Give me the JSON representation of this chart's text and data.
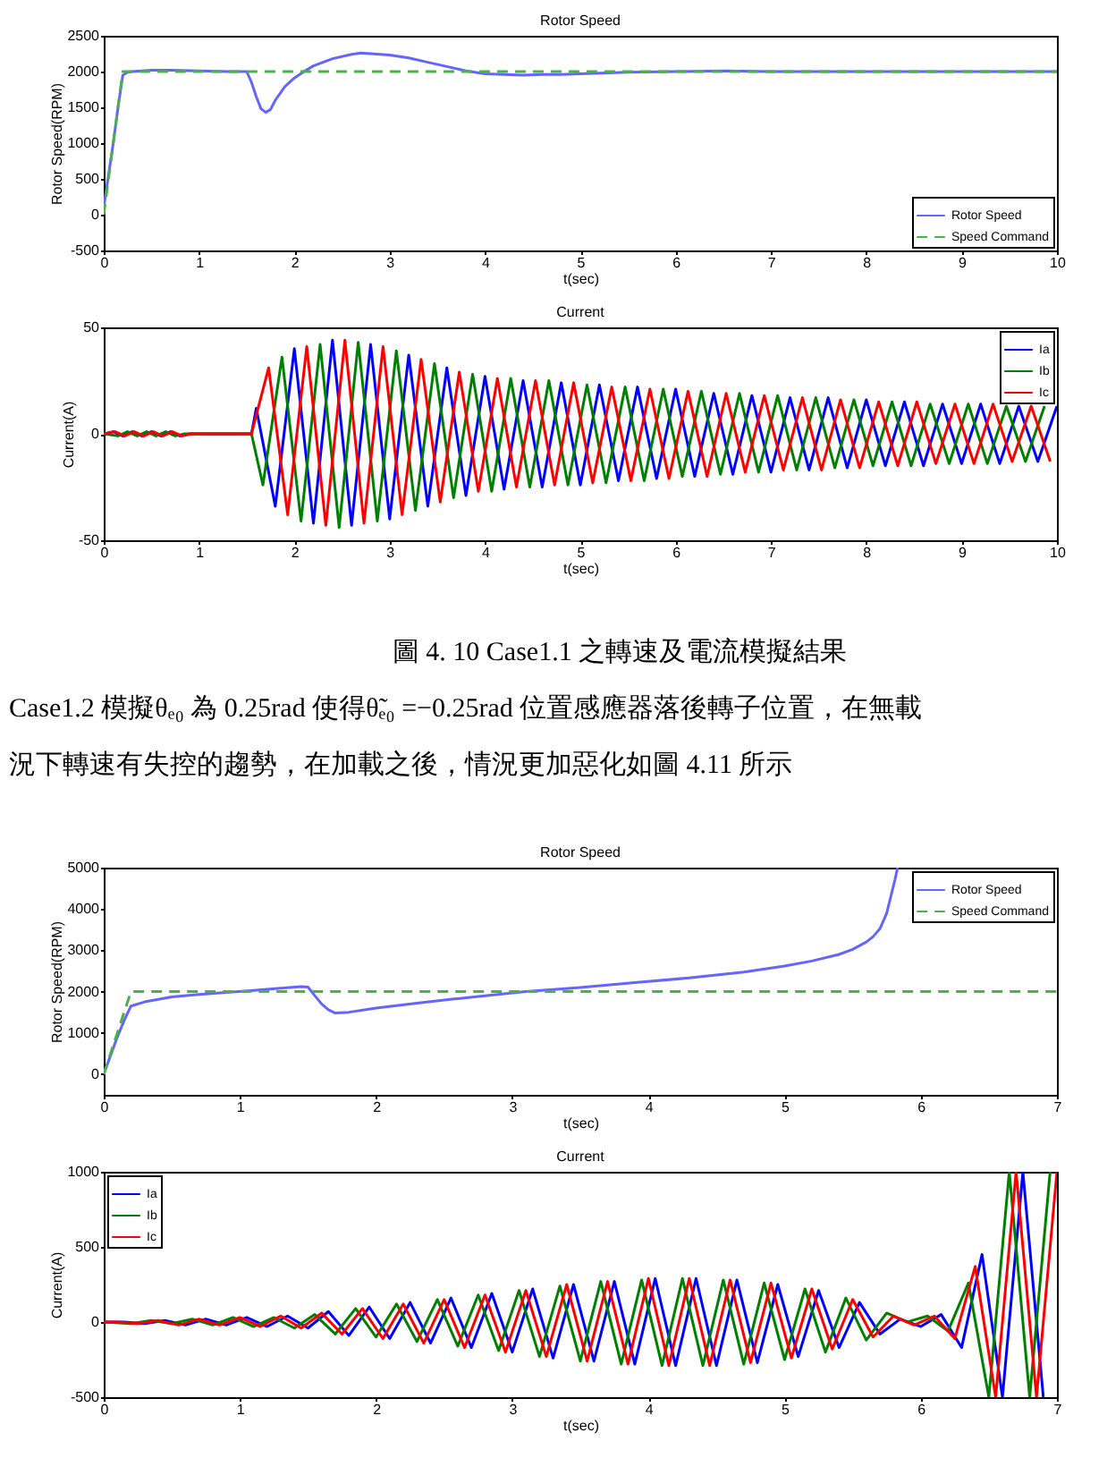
{
  "chart_data": [
    {
      "type": "line",
      "title": "Rotor Speed",
      "xlabel": "t(sec)",
      "ylabel": "Rotor Speed(RPM)",
      "xlim": [
        0,
        10
      ],
      "ylim": [
        -500,
        2500
      ],
      "xticks": [
        0,
        1,
        2,
        3,
        4,
        5,
        6,
        7,
        8,
        9,
        10
      ],
      "yticks": [
        -500,
        0,
        500,
        1000,
        1500,
        2000,
        2500
      ],
      "legend": "bottom right",
      "series": [
        {
          "name": "Rotor Speed",
          "color": "#6464ff",
          "line_style": "solid",
          "x": [
            0,
            0.05,
            0.1,
            0.15,
            0.2,
            0.25,
            0.3,
            0.4,
            0.5,
            0.7,
            1.0,
            1.3,
            1.5,
            1.55,
            1.6,
            1.65,
            1.7,
            1.75,
            1.8,
            1.9,
            2.0,
            2.1,
            2.2,
            2.4,
            2.6,
            2.7,
            2.8,
            3.0,
            3.2,
            3.4,
            3.6,
            3.8,
            4.0,
            4.2,
            4.4,
            4.6,
            4.8,
            5.0,
            5.5,
            6.0,
            6.5,
            7.0,
            8.0,
            9.0,
            10
          ],
          "values": [
            100,
            550,
            1000,
            1500,
            1950,
            1990,
            2000,
            2010,
            2020,
            2020,
            2010,
            2000,
            2000,
            1850,
            1650,
            1480,
            1430,
            1470,
            1600,
            1790,
            1910,
            2000,
            2080,
            2180,
            2240,
            2260,
            2250,
            2230,
            2190,
            2130,
            2070,
            2010,
            1970,
            1960,
            1950,
            1960,
            1960,
            1970,
            1990,
            2000,
            2010,
            2000,
            2000,
            2000,
            2000
          ]
        },
        {
          "name": "Speed Command",
          "color": "#4cb04c",
          "line_style": "dashed",
          "x": [
            0,
            0.2,
            10
          ],
          "values": [
            0,
            2000,
            2000
          ]
        }
      ]
    },
    {
      "type": "line",
      "title": "Current",
      "xlabel": "t(sec)",
      "ylabel": "Current(A)",
      "xlim": [
        0,
        10
      ],
      "ylim": [
        -50,
        50
      ],
      "xticks": [
        0,
        1,
        2,
        3,
        4,
        5,
        6,
        7,
        8,
        9,
        10
      ],
      "yticks": [
        -50,
        0,
        50
      ],
      "legend": "top right",
      "annotations": [
        "圖 4. 10 Case1.1 之轉速及電流模擬結果",
        "Case1.2 模擬θₑ₀ 為 0.25rad 使得θ̃ₑ₀ =−0.25rad 位置感應器落後轉子位置，在無載",
        "況下轉速有失控的趨勢，在加載之後，情況更加惡化如圖 4.11 所示"
      ],
      "series": [
        {
          "name": "Ia",
          "color": "#0000ff",
          "line_style": "solid",
          "x": [
            0,
            0.1,
            0.2,
            0.3,
            0.4,
            0.5,
            0.6,
            0.7,
            0.8,
            0.9,
            1.5,
            1.55,
            1.6,
            1.8,
            2.0,
            2.2,
            2.4,
            2.6,
            2.8,
            3.0,
            3.2,
            3.4,
            3.6,
            3.8,
            4.0,
            4.2,
            4.4,
            4.6,
            4.8,
            5.0,
            5.2,
            5.4,
            5.6,
            5.8,
            6.0,
            6.2,
            6.4,
            6.6,
            6.8,
            7.0,
            7.2,
            7.4,
            7.6,
            7.8,
            8.0,
            8.2,
            8.4,
            8.6,
            8.8,
            9.0,
            9.2,
            9.4,
            9.6,
            9.8,
            10
          ],
          "values": [
            0,
            1,
            -1,
            1,
            -1,
            1,
            -1,
            1,
            -1,
            0,
            0,
            0,
            12,
            -34,
            40,
            -42,
            44,
            -43,
            42,
            -40,
            37,
            -34,
            31,
            -29,
            27,
            -26,
            25,
            -25,
            24,
            -24,
            23,
            -22,
            22,
            -21,
            21,
            -20,
            19,
            -19,
            18,
            -18,
            17,
            -17,
            17,
            -16,
            16,
            -15,
            15,
            -15,
            14,
            -14,
            14,
            -14,
            13,
            -13,
            13
          ]
        },
        {
          "name": "Ib",
          "color": "#008000",
          "line_style": "solid",
          "x": [
            0,
            0.15,
            0.25,
            0.35,
            0.45,
            0.55,
            0.65,
            0.75,
            0.85,
            1.5,
            1.55,
            1.67,
            1.87,
            2.07,
            2.27,
            2.47,
            2.67,
            2.87,
            3.07,
            3.27,
            3.47,
            3.67,
            3.87,
            4.07,
            4.27,
            4.47,
            4.67,
            4.87,
            5.07,
            5.27,
            5.47,
            5.67,
            5.87,
            6.07,
            6.27,
            6.47,
            6.67,
            6.87,
            7.07,
            7.27,
            7.47,
            7.67,
            7.87,
            8.07,
            8.27,
            8.47,
            8.67,
            8.87,
            9.07,
            9.27,
            9.47,
            9.67,
            9.87
          ],
          "values": [
            0,
            -1,
            1,
            -1,
            1,
            -1,
            1,
            -1,
            0,
            0,
            0,
            -24,
            36,
            -41,
            42,
            -44,
            43,
            -41,
            39,
            -36,
            33,
            -30,
            28,
            -27,
            26,
            -25,
            25,
            -24,
            23,
            -23,
            22,
            -22,
            21,
            -20,
            20,
            -19,
            19,
            -18,
            18,
            -17,
            17,
            -16,
            16,
            -15,
            15,
            -15,
            14,
            -14,
            14,
            -14,
            13,
            -13,
            13
          ]
        },
        {
          "name": "Ic",
          "color": "#ff0000",
          "line_style": "solid",
          "x": [
            0,
            0.12,
            0.22,
            0.32,
            0.42,
            0.52,
            0.62,
            0.72,
            0.82,
            0.92,
            1.5,
            1.55,
            1.73,
            1.93,
            2.13,
            2.33,
            2.53,
            2.73,
            2.93,
            3.13,
            3.33,
            3.53,
            3.73,
            3.93,
            4.13,
            4.33,
            4.53,
            4.73,
            4.93,
            5.13,
            5.33,
            5.53,
            5.73,
            5.93,
            6.13,
            6.33,
            6.53,
            6.73,
            6.93,
            7.13,
            7.33,
            7.53,
            7.73,
            7.93,
            8.13,
            8.33,
            8.53,
            8.73,
            8.93,
            9.13,
            9.33,
            9.53,
            9.73,
            9.93
          ],
          "values": [
            0,
            1,
            -1,
            1,
            -1,
            1,
            -1,
            1,
            -1,
            0,
            0,
            0,
            31,
            -38,
            41,
            -43,
            44,
            -42,
            41,
            -38,
            35,
            -32,
            29,
            -27,
            26,
            -25,
            25,
            -24,
            24,
            -23,
            22,
            -22,
            21,
            -21,
            20,
            -20,
            19,
            -18,
            18,
            -17,
            17,
            -17,
            16,
            -16,
            15,
            -15,
            15,
            -14,
            14,
            -14,
            14,
            -13,
            13,
            -13
          ]
        }
      ]
    },
    {
      "type": "line",
      "title": "Rotor Speed",
      "xlabel": "t(sec)",
      "ylabel": "Rotor Speed(RPM)",
      "xlim": [
        0,
        7
      ],
      "ylim": [
        -500,
        5000
      ],
      "xticks": [
        0,
        1,
        2,
        3,
        4,
        5,
        6,
        7
      ],
      "yticks": [
        0,
        1000,
        2000,
        3000,
        4000,
        5000
      ],
      "legend": "top right",
      "series": [
        {
          "name": "Rotor Speed",
          "color": "#6464ff",
          "line_style": "solid",
          "x": [
            0,
            0.05,
            0.1,
            0.15,
            0.2,
            0.3,
            0.5,
            0.7,
            0.9,
            1.1,
            1.3,
            1.45,
            1.5,
            1.55,
            1.6,
            1.65,
            1.7,
            1.8,
            2.0,
            2.3,
            2.6,
            2.8,
            3.1,
            3.5,
            3.9,
            4.3,
            4.7,
            5.0,
            5.2,
            5.4,
            5.5,
            5.6,
            5.65,
            5.7,
            5.75,
            5.78,
            5.81,
            5.83
          ],
          "values": [
            0,
            450,
            900,
            1300,
            1650,
            1750,
            1870,
            1930,
            1980,
            2030,
            2080,
            2120,
            2110,
            1900,
            1700,
            1560,
            1480,
            1500,
            1600,
            1720,
            1830,
            1900,
            2000,
            2100,
            2220,
            2330,
            2470,
            2620,
            2740,
            2900,
            3020,
            3200,
            3330,
            3520,
            3900,
            4300,
            4700,
            5000
          ]
        },
        {
          "name": "Speed Command",
          "color": "#4cb04c",
          "line_style": "dashed",
          "x": [
            0,
            0.2,
            7
          ],
          "values": [
            0,
            2000,
            2000
          ]
        }
      ]
    },
    {
      "type": "line",
      "title": "Current",
      "xlabel": "t(sec)",
      "ylabel": "Current(A)",
      "xlim": [
        0,
        7
      ],
      "ylim": [
        -500,
        1000
      ],
      "xticks": [
        0,
        1,
        2,
        3,
        4,
        5,
        6,
        7
      ],
      "yticks": [
        -500,
        0,
        500,
        1000
      ],
      "legend": "top left",
      "series": [
        {
          "name": "Ia",
          "color": "#0000ff",
          "line_style": "solid",
          "x": [
            0,
            0.15,
            0.3,
            0.45,
            0.6,
            0.75,
            0.9,
            1.05,
            1.2,
            1.35,
            1.5,
            1.65,
            1.8,
            1.95,
            2.1,
            2.25,
            2.4,
            2.55,
            2.7,
            2.85,
            3.0,
            3.15,
            3.3,
            3.45,
            3.6,
            3.75,
            3.9,
            4.05,
            4.2,
            4.35,
            4.5,
            4.65,
            4.8,
            4.95,
            5.1,
            5.25,
            5.4,
            5.55,
            5.7,
            5.85,
            6.0,
            6.15,
            6.3,
            6.45,
            6.6,
            6.75,
            6.9
          ],
          "values": [
            0,
            0,
            -10,
            10,
            -20,
            20,
            -20,
            30,
            -30,
            40,
            -40,
            70,
            -90,
            100,
            -110,
            130,
            -140,
            160,
            -170,
            190,
            -200,
            220,
            -240,
            250,
            -260,
            270,
            -280,
            290,
            -290,
            290,
            -290,
            280,
            -270,
            250,
            -230,
            210,
            -170,
            130,
            -80,
            20,
            -30,
            50,
            -170,
            450,
            -500,
            1000,
            -500
          ]
        },
        {
          "name": "Ib",
          "color": "#008000",
          "line_style": "solid",
          "x": [
            0,
            0.2,
            0.35,
            0.5,
            0.65,
            0.8,
            0.95,
            1.1,
            1.25,
            1.4,
            1.55,
            1.7,
            1.85,
            2.0,
            2.15,
            2.3,
            2.45,
            2.6,
            2.75,
            2.9,
            3.05,
            3.2,
            3.35,
            3.5,
            3.65,
            3.8,
            3.95,
            4.1,
            4.25,
            4.4,
            4.55,
            4.7,
            4.85,
            5.0,
            5.15,
            5.3,
            5.45,
            5.6,
            5.75,
            5.9,
            6.05,
            6.2,
            6.35,
            6.5,
            6.65,
            6.8,
            6.95
          ],
          "values": [
            0,
            -10,
            10,
            -10,
            20,
            -20,
            30,
            -30,
            30,
            -40,
            50,
            -80,
            90,
            -100,
            120,
            -130,
            150,
            -160,
            180,
            -190,
            210,
            -230,
            240,
            -260,
            270,
            -280,
            280,
            -290,
            290,
            -290,
            280,
            -280,
            260,
            -250,
            220,
            -200,
            160,
            -120,
            60,
            0,
            40,
            -60,
            260,
            -500,
            1000,
            -500,
            1000
          ]
        },
        {
          "name": "Ic",
          "color": "#ff0000",
          "line_style": "solid",
          "x": [
            0,
            0.1,
            0.25,
            0.4,
            0.55,
            0.7,
            0.85,
            1.0,
            1.15,
            1.3,
            1.45,
            1.6,
            1.75,
            1.9,
            2.05,
            2.2,
            2.35,
            2.5,
            2.65,
            2.8,
            2.95,
            3.1,
            3.25,
            3.4,
            3.55,
            3.7,
            3.85,
            4.0,
            4.15,
            4.3,
            4.45,
            4.6,
            4.75,
            4.9,
            5.05,
            5.2,
            5.35,
            5.5,
            5.65,
            5.8,
            5.95,
            6.1,
            6.25,
            6.4,
            6.55,
            6.7,
            6.85,
            7.0
          ],
          "values": [
            0,
            0,
            -10,
            10,
            -20,
            20,
            -20,
            30,
            -30,
            40,
            -40,
            60,
            -80,
            90,
            -110,
            120,
            -140,
            150,
            -170,
            180,
            -200,
            210,
            -230,
            250,
            -260,
            270,
            -280,
            290,
            -290,
            290,
            -290,
            280,
            -270,
            260,
            -240,
            220,
            -180,
            150,
            -100,
            40,
            -20,
            40,
            -110,
            370,
            -500,
            1000,
            -500,
            1000
          ]
        }
      ]
    }
  ]
}
